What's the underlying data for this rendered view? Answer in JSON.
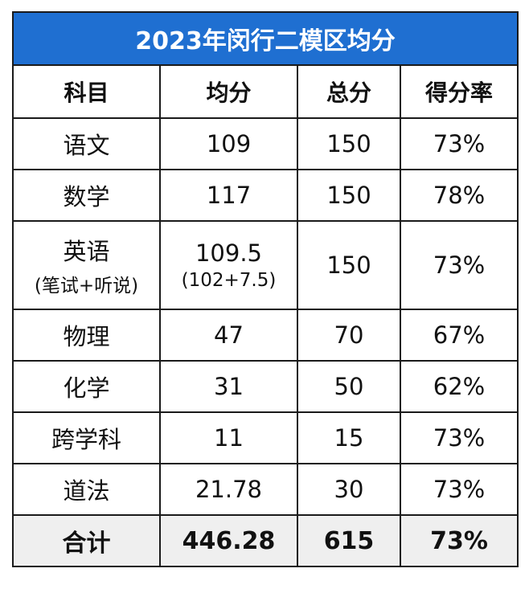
{
  "title": "2023年闵行二模区均分",
  "headers": {
    "subject": "科目",
    "average": "均分",
    "total": "总分",
    "rate": "得分率"
  },
  "rows": [
    {
      "subject": "语文",
      "subject_note": "",
      "average": "109",
      "average_note": "",
      "total": "150",
      "rate": "73%"
    },
    {
      "subject": "数学",
      "subject_note": "",
      "average": "117",
      "average_note": "",
      "total": "150",
      "rate": "78%"
    },
    {
      "subject": "英语",
      "subject_note": "(笔试+听说)",
      "average": "109.5",
      "average_note": "(102+7.5)",
      "total": "150",
      "rate": "73%"
    },
    {
      "subject": "物理",
      "subject_note": "",
      "average": "47",
      "average_note": "",
      "total": "70",
      "rate": "67%"
    },
    {
      "subject": "化学",
      "subject_note": "",
      "average": "31",
      "average_note": "",
      "total": "50",
      "rate": "62%"
    },
    {
      "subject": "跨学科",
      "subject_note": "",
      "average": "11",
      "average_note": "",
      "total": "15",
      "rate": "73%"
    },
    {
      "subject": "道法",
      "subject_note": "",
      "average": "21.78",
      "average_note": "",
      "total": "30",
      "rate": "73%"
    }
  ],
  "summary": {
    "label": "合计",
    "average": "446.28",
    "total": "615",
    "rate": "73%"
  },
  "colors": {
    "title_bg": "#1f6fd1",
    "title_text": "#ffffff",
    "border": "#1a1a1a",
    "total_bg": "#efefef"
  }
}
